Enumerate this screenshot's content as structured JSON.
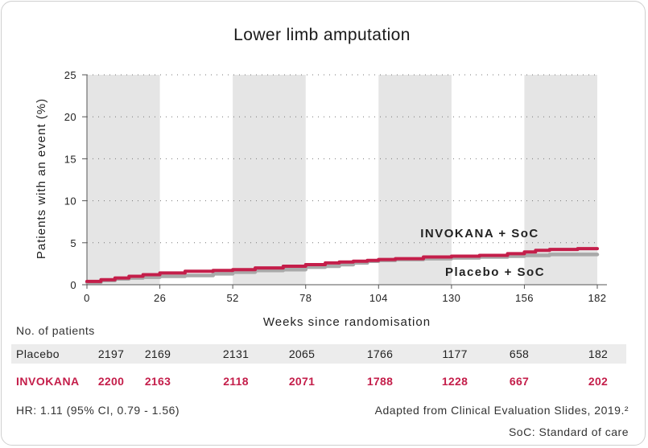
{
  "chart_data": {
    "type": "line",
    "title": "Lower limb amputation",
    "xlabel": "Weeks since randomisation",
    "ylabel": "Patients with an event (%)",
    "xlim": [
      0,
      182
    ],
    "ylim": [
      0,
      25
    ],
    "x_ticks": [
      "0",
      "26",
      "52",
      "78",
      "104",
      "130",
      "156",
      "182"
    ],
    "y_ticks": [
      "0",
      "5",
      "10",
      "15",
      "20",
      "25"
    ],
    "grid": "horizontal dotted",
    "shaded_bands": [
      [
        0,
        26
      ],
      [
        52,
        78
      ],
      [
        104,
        130
      ],
      [
        156,
        182
      ]
    ],
    "series": [
      {
        "name": "Placebo + SoC",
        "color": "#a9a9a9",
        "x": [
          0,
          5,
          10,
          15,
          20,
          26,
          35,
          45,
          52,
          60,
          70,
          78,
          85,
          90,
          95,
          100,
          104,
          110,
          120,
          130,
          140,
          150,
          156,
          165,
          175,
          182
        ],
        "y": [
          0.3,
          0.5,
          0.7,
          0.8,
          0.9,
          1.0,
          1.1,
          1.3,
          1.5,
          1.7,
          1.8,
          2.1,
          2.2,
          2.4,
          2.6,
          2.8,
          2.9,
          3.0,
          3.1,
          3.2,
          3.3,
          3.4,
          3.5,
          3.6,
          3.6,
          3.6
        ]
      },
      {
        "name": "INVOKANA + SoC",
        "color": "#c41e4a",
        "x": [
          0,
          5,
          10,
          15,
          20,
          26,
          35,
          45,
          52,
          60,
          70,
          78,
          85,
          90,
          95,
          100,
          104,
          110,
          120,
          130,
          140,
          150,
          156,
          160,
          165,
          175,
          182
        ],
        "y": [
          0.4,
          0.6,
          0.8,
          1.0,
          1.2,
          1.4,
          1.6,
          1.7,
          1.8,
          2.0,
          2.2,
          2.4,
          2.6,
          2.7,
          2.8,
          2.9,
          3.0,
          3.1,
          3.3,
          3.4,
          3.5,
          3.7,
          3.9,
          4.1,
          4.2,
          4.3,
          4.3
        ]
      }
    ],
    "series_labels": [
      "INVOKANA + SoC",
      "Placebo + SoC"
    ]
  },
  "patients_table": {
    "title": "No. of patients",
    "rows": [
      {
        "name": "Placebo",
        "values": [
          "2197",
          "2169",
          "2131",
          "2065",
          "1766",
          "1177",
          "658",
          "182"
        ]
      },
      {
        "name": "INVOKANA",
        "values": [
          "2200",
          "2163",
          "2118",
          "2071",
          "1788",
          "1228",
          "667",
          "202"
        ]
      }
    ]
  },
  "footer": {
    "hr": "HR: 1.11 (95% CI, 0.79 - 1.56)",
    "source": "Adapted from Clinical Evaluation Slides, 2019.²",
    "abbrev": "SoC: Standard of care"
  },
  "colors": {
    "accent": "#c41e4a",
    "placebo": "#a9a9a9",
    "band": "#e5e5e5",
    "row_bg": "#ececec"
  }
}
